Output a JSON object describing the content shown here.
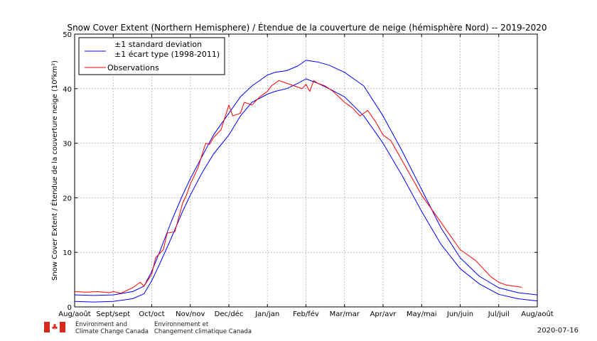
{
  "chart_data": {
    "type": "line",
    "title": "Snow Cover Extent (Northern Hemisphere) / Étendue de la couverture de neige (hémisphère Nord) -- 2019-2020",
    "ylabel": "Snow Cover Extent / Étendue de la couverture neige (10⁶km²)",
    "xlabel": "",
    "ylim": [
      0,
      50
    ],
    "yticks": [
      0,
      10,
      20,
      30,
      40,
      50
    ],
    "xlim": [
      0,
      12
    ],
    "xtick_positions": [
      0,
      1,
      2,
      3,
      4,
      5,
      6,
      7,
      8,
      9,
      10,
      11,
      12
    ],
    "xtick_labels": [
      "Aug/août",
      "Sept/sept",
      "Oct/oct",
      "Nov/nov",
      "Dec/déc",
      "Jan/jan",
      "Feb/fév",
      "Mar/mar",
      "Apr/avr",
      "May/mai",
      "Jun/juin",
      "Jul/juil",
      "Aug/août"
    ],
    "grid": true,
    "legend_position": "top-left",
    "legend": [
      {
        "label_line1": "±1 standard deviation",
        "label_line2": "±1 écart type (1998-2011)",
        "color": "#0000ff"
      },
      {
        "label_line1": "Observations",
        "label_line2": "",
        "color": "#ff0000"
      }
    ],
    "series": [
      {
        "role": "std-upper",
        "color": "#0000ff",
        "x": [
          0,
          0.5,
          1,
          1.5,
          1.8,
          2.0,
          2.2,
          2.5,
          2.8,
          3.0,
          3.3,
          3.6,
          4.0,
          4.3,
          4.6,
          5.0,
          5.2,
          5.5,
          5.8,
          6.0,
          6.3,
          6.6,
          7.0,
          7.5,
          8.0,
          8.5,
          9.0,
          9.5,
          10.0,
          10.5,
          11.0,
          11.5,
          12.0
        ],
        "y": [
          2.2,
          2.1,
          2.2,
          2.8,
          3.8,
          6.5,
          10.0,
          15.5,
          20.5,
          23.5,
          27.5,
          31.5,
          35.5,
          38.5,
          40.5,
          42.5,
          43.0,
          43.3,
          44.2,
          45.2,
          44.9,
          44.3,
          43.0,
          40.5,
          35.0,
          28.5,
          21.5,
          14.5,
          9.0,
          5.6,
          3.5,
          2.6,
          2.2
        ]
      },
      {
        "role": "std-lower",
        "color": "#0000ff",
        "x": [
          0,
          0.5,
          1,
          1.5,
          1.8,
          2.0,
          2.2,
          2.5,
          2.8,
          3.0,
          3.3,
          3.6,
          4.0,
          4.3,
          4.6,
          5.0,
          5.2,
          5.5,
          5.8,
          6.0,
          6.3,
          6.6,
          7.0,
          7.5,
          8.0,
          8.5,
          9.0,
          9.5,
          10.0,
          10.5,
          11.0,
          11.5,
          12.0
        ],
        "y": [
          1.0,
          0.9,
          1.0,
          1.5,
          2.4,
          4.8,
          7.8,
          12.5,
          17.5,
          20.5,
          24.5,
          28.0,
          31.5,
          35.0,
          37.5,
          39.0,
          39.5,
          40.0,
          41.0,
          41.8,
          41.0,
          40.0,
          38.5,
          35.0,
          30.0,
          24.0,
          17.5,
          11.5,
          7.0,
          4.2,
          2.3,
          1.5,
          1.1
        ]
      },
      {
        "role": "observations",
        "color": "#ff0000",
        "x": [
          0,
          0.3,
          0.6,
          0.9,
          1.0,
          1.2,
          1.5,
          1.7,
          1.8,
          2.0,
          2.1,
          2.3,
          2.4,
          2.6,
          2.8,
          2.9,
          3.0,
          3.2,
          3.4,
          3.5,
          3.6,
          3.8,
          4.0,
          4.1,
          4.3,
          4.4,
          4.6,
          4.8,
          5.0,
          5.1,
          5.3,
          5.5,
          5.7,
          5.9,
          6.0,
          6.1,
          6.2,
          6.3,
          6.5,
          6.7,
          7.0,
          7.2,
          7.4,
          7.6,
          7.8,
          8.0,
          8.2,
          8.4,
          8.6,
          8.8,
          9.0,
          9.2,
          9.4,
          9.6,
          9.8,
          10.0,
          10.2,
          10.4,
          10.6,
          10.8,
          11.0,
          11.2,
          11.4,
          11.6
        ],
        "y": [
          2.8,
          2.7,
          2.8,
          2.6,
          2.8,
          2.5,
          3.5,
          4.5,
          3.8,
          6.0,
          9.0,
          10.5,
          13.5,
          13.8,
          19.0,
          20.5,
          22.5,
          25.5,
          30.0,
          29.8,
          31.0,
          32.5,
          37.0,
          35.0,
          35.5,
          37.5,
          37.0,
          38.5,
          39.5,
          40.5,
          41.5,
          41.0,
          40.5,
          40.0,
          40.8,
          39.5,
          41.5,
          41.0,
          40.5,
          39.5,
          37.5,
          36.5,
          35.0,
          36.0,
          34.0,
          31.5,
          30.5,
          28.0,
          25.5,
          23.0,
          20.5,
          18.5,
          16.5,
          14.5,
          12.5,
          10.5,
          9.5,
          8.5,
          7.0,
          5.5,
          4.5,
          4.0,
          3.8,
          3.6
        ]
      }
    ]
  },
  "footer": {
    "org_en_line1": "Environment and",
    "org_en_line2": "Climate Change Canada",
    "org_fr_line1": "Environnement et",
    "org_fr_line2": "Changement climatique Canada",
    "date": "2020-07-16",
    "flag_icon": "canada-flag-icon"
  }
}
